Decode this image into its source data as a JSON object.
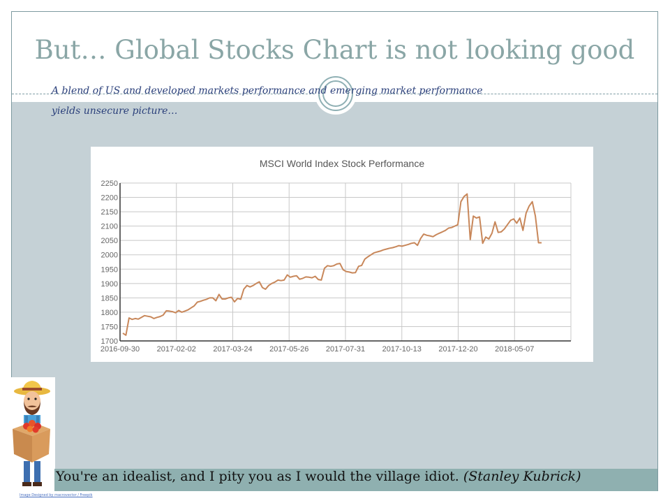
{
  "slide": {
    "title": "But… Global Stocks Chart is not looking good",
    "subtitle": "A blend of US and developed markets performance and emerging market performance yields unsecure picture…",
    "quote_text": "You're an idealist, and I pity you as I would the village idiot.",
    "quote_author": "(Stanley Kubrick)",
    "image_credit": "Image Designed by macrovector / Freepik",
    "colors": {
      "title": "#8aa6a6",
      "band": "#c5d1d6",
      "quote_bar": "#8fb0b0",
      "subtitle": "#2a3f7a"
    }
  },
  "chart_data": {
    "type": "line",
    "title": "MSCI World Index Stock Performance",
    "xlabel": "",
    "ylabel": "",
    "ylim": [
      1700,
      2250
    ],
    "yticks": [
      1700,
      1750,
      1800,
      1850,
      1900,
      1950,
      2000,
      2050,
      2100,
      2150,
      2200,
      2250
    ],
    "xtick_labels": [
      "2016-09-30",
      "2017-02-02",
      "2017-03-24",
      "2017-05-26",
      "2017-07-31",
      "2017-10-13",
      "2017-12-20",
      "2018-05-07"
    ],
    "grid": true,
    "line_color": "#c8875a",
    "series": [
      {
        "name": "",
        "values": [
          1727,
          1720,
          1780,
          1775,
          1778,
          1776,
          1782,
          1788,
          1786,
          1784,
          1778,
          1782,
          1785,
          1790,
          1805,
          1804,
          1802,
          1798,
          1806,
          1800,
          1804,
          1808,
          1815,
          1822,
          1835,
          1838,
          1842,
          1845,
          1850,
          1850,
          1840,
          1862,
          1846,
          1846,
          1850,
          1852,
          1836,
          1848,
          1845,
          1880,
          1893,
          1888,
          1893,
          1900,
          1906,
          1886,
          1880,
          1893,
          1900,
          1905,
          1912,
          1910,
          1912,
          1930,
          1922,
          1925,
          1927,
          1915,
          1918,
          1923,
          1922,
          1920,
          1925,
          1914,
          1912,
          1953,
          1962,
          1960,
          1962,
          1968,
          1970,
          1948,
          1942,
          1940,
          1937,
          1938,
          1960,
          1963,
          1985,
          1993,
          2000,
          2007,
          2010,
          2013,
          2017,
          2020,
          2023,
          2025,
          2028,
          2032,
          2030,
          2033,
          2036,
          2040,
          2042,
          2033,
          2057,
          2072,
          2068,
          2066,
          2063,
          2070,
          2075,
          2080,
          2085,
          2093,
          2095,
          2100,
          2105,
          2185,
          2203,
          2212,
          2053,
          2135,
          2128,
          2132,
          2040,
          2062,
          2055,
          2075,
          2115,
          2078,
          2080,
          2090,
          2105,
          2120,
          2125,
          2110,
          2128,
          2085,
          2145,
          2170,
          2185,
          2135,
          2042,
          2042
        ]
      }
    ]
  }
}
